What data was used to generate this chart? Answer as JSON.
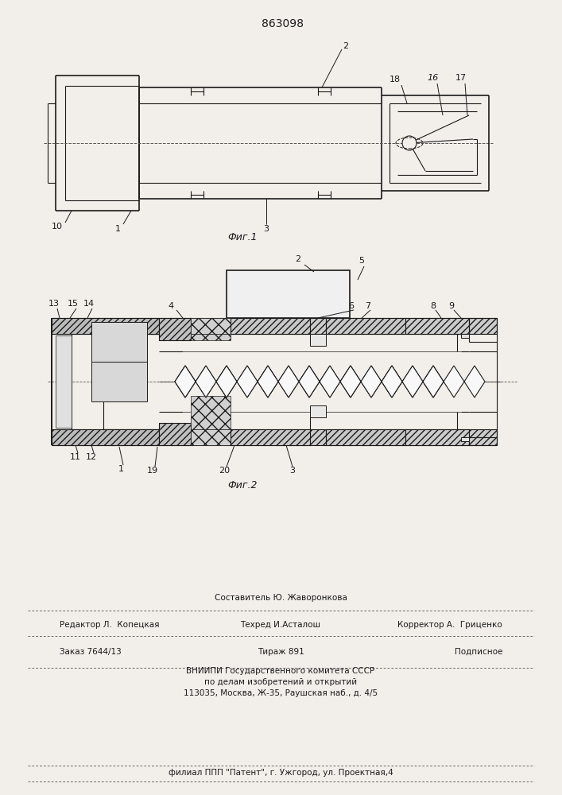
{
  "patent_number": "863098",
  "fig1_label": "Фиг.1",
  "fig2_label": "Фиг.2",
  "background_color": "#f2efea",
  "line_color": "#1a1a1a",
  "footer_col1_line1": "Редактор Л.  Копецкая",
  "footer_col2_line1": "Составитель Ю. Жаворонкова",
  "footer_col2_line2": "Техред И.Асталош",
  "footer_col3_line1": "Корректор А.  Гриценко",
  "footer_order": "Заказ 7644/13",
  "footer_tirazh": "Тираж 891",
  "footer_podp": "Подписное",
  "footer_vnipi1": "ВНИИПИ Государственного комитета СССР",
  "footer_vnipi2": "по делам изобретений и открытий",
  "footer_addr": "113035, Москва, Ж-35, Раушская наб., д. 4/5",
  "footer_filial": "филиал ППП \"Патент\", г. Ужгород, ул. Проектная,4"
}
